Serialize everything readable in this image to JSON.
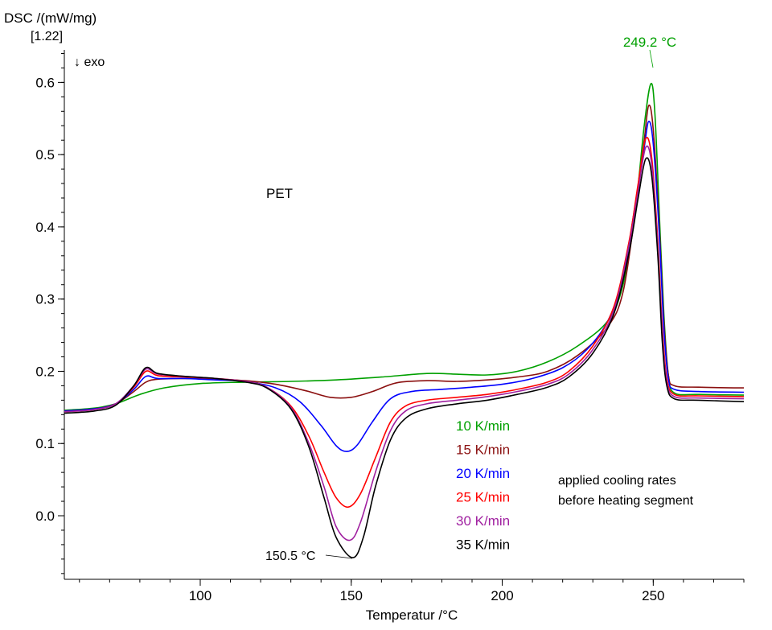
{
  "chart_data": {
    "type": "line",
    "ylabel": "DSC /(mW/mg)",
    "ylabel_sub": "[1.22]",
    "exo_label": "↓ exo",
    "xlabel": "Temperatur /°C",
    "xlim": [
      55,
      280
    ],
    "ylim": [
      -0.088,
      0.645
    ],
    "x_ticks": [
      "100",
      "150",
      "200",
      "250"
    ],
    "y_ticks": [
      "0.0",
      "0.1",
      "0.2",
      "0.3",
      "0.4",
      "0.5",
      "0.6"
    ],
    "sample_label": "PET",
    "annotation_peak": "249.2 °C",
    "annotation_min": "150.5 °C",
    "note_line1": "applied cooling rates",
    "note_line2": "before heating segment",
    "series": [
      {
        "name": "10 K/min",
        "color": "#00a000",
        "points": [
          [
            55,
            0.146
          ],
          [
            65,
            0.149
          ],
          [
            72,
            0.155
          ],
          [
            80,
            0.168
          ],
          [
            88,
            0.177
          ],
          [
            100,
            0.183
          ],
          [
            115,
            0.185
          ],
          [
            130,
            0.186
          ],
          [
            145,
            0.188
          ],
          [
            160,
            0.192
          ],
          [
            175,
            0.197
          ],
          [
            185,
            0.196
          ],
          [
            195,
            0.195
          ],
          [
            205,
            0.2
          ],
          [
            215,
            0.213
          ],
          [
            225,
            0.235
          ],
          [
            235,
            0.27
          ],
          [
            240,
            0.32
          ],
          [
            244,
            0.42
          ],
          [
            247,
            0.54
          ],
          [
            249.2,
            0.598
          ],
          [
            250.5,
            0.56
          ],
          [
            252,
            0.42
          ],
          [
            253.5,
            0.28
          ],
          [
            255,
            0.195
          ],
          [
            257,
            0.17
          ],
          [
            265,
            0.168
          ],
          [
            280,
            0.167
          ]
        ]
      },
      {
        "name": "15 K/min",
        "color": "#8b1010",
        "points": [
          [
            55,
            0.145
          ],
          [
            65,
            0.148
          ],
          [
            72,
            0.155
          ],
          [
            78,
            0.172
          ],
          [
            82,
            0.185
          ],
          [
            86,
            0.189
          ],
          [
            95,
            0.19
          ],
          [
            105,
            0.189
          ],
          [
            115,
            0.187
          ],
          [
            125,
            0.182
          ],
          [
            135,
            0.173
          ],
          [
            143,
            0.164
          ],
          [
            150,
            0.164
          ],
          [
            157,
            0.172
          ],
          [
            165,
            0.184
          ],
          [
            175,
            0.187
          ],
          [
            185,
            0.186
          ],
          [
            195,
            0.188
          ],
          [
            205,
            0.192
          ],
          [
            215,
            0.2
          ],
          [
            225,
            0.222
          ],
          [
            235,
            0.262
          ],
          [
            240,
            0.31
          ],
          [
            244,
            0.42
          ],
          [
            247,
            0.52
          ],
          [
            248.5,
            0.568
          ],
          [
            250,
            0.535
          ],
          [
            252,
            0.4
          ],
          [
            253.5,
            0.27
          ],
          [
            255,
            0.195
          ],
          [
            257,
            0.18
          ],
          [
            265,
            0.178
          ],
          [
            280,
            0.177
          ]
        ]
      },
      {
        "name": "20 K/min",
        "color": "#0000ff",
        "points": [
          [
            55,
            0.145
          ],
          [
            65,
            0.148
          ],
          [
            72,
            0.155
          ],
          [
            78,
            0.175
          ],
          [
            82,
            0.193
          ],
          [
            86,
            0.19
          ],
          [
            95,
            0.19
          ],
          [
            105,
            0.188
          ],
          [
            115,
            0.186
          ],
          [
            125,
            0.177
          ],
          [
            133,
            0.158
          ],
          [
            140,
            0.125
          ],
          [
            145,
            0.097
          ],
          [
            148.5,
            0.089
          ],
          [
            152,
            0.098
          ],
          [
            157,
            0.13
          ],
          [
            163,
            0.162
          ],
          [
            170,
            0.172
          ],
          [
            180,
            0.175
          ],
          [
            190,
            0.178
          ],
          [
            200,
            0.182
          ],
          [
            210,
            0.19
          ],
          [
            220,
            0.205
          ],
          [
            228,
            0.23
          ],
          [
            235,
            0.27
          ],
          [
            240,
            0.33
          ],
          [
            244,
            0.43
          ],
          [
            247,
            0.51
          ],
          [
            248.5,
            0.546
          ],
          [
            250,
            0.515
          ],
          [
            252,
            0.39
          ],
          [
            253.5,
            0.26
          ],
          [
            255,
            0.19
          ],
          [
            257,
            0.175
          ],
          [
            265,
            0.172
          ],
          [
            280,
            0.171
          ]
        ]
      },
      {
        "name": "25 K/min",
        "color": "#ff0000",
        "points": [
          [
            55,
            0.144
          ],
          [
            65,
            0.147
          ],
          [
            72,
            0.155
          ],
          [
            78,
            0.178
          ],
          [
            82,
            0.2
          ],
          [
            86,
            0.194
          ],
          [
            95,
            0.192
          ],
          [
            105,
            0.19
          ],
          [
            115,
            0.186
          ],
          [
            122,
            0.178
          ],
          [
            130,
            0.152
          ],
          [
            136,
            0.11
          ],
          [
            141,
            0.06
          ],
          [
            145,
            0.025
          ],
          [
            149,
            0.012
          ],
          [
            153,
            0.03
          ],
          [
            158,
            0.08
          ],
          [
            163,
            0.13
          ],
          [
            168,
            0.152
          ],
          [
            175,
            0.16
          ],
          [
            185,
            0.164
          ],
          [
            195,
            0.168
          ],
          [
            205,
            0.175
          ],
          [
            215,
            0.185
          ],
          [
            222,
            0.2
          ],
          [
            230,
            0.235
          ],
          [
            237,
            0.29
          ],
          [
            242,
            0.38
          ],
          [
            245,
            0.46
          ],
          [
            247.5,
            0.522
          ],
          [
            249.5,
            0.495
          ],
          [
            251.5,
            0.38
          ],
          [
            253,
            0.26
          ],
          [
            254.5,
            0.19
          ],
          [
            257,
            0.168
          ],
          [
            265,
            0.166
          ],
          [
            280,
            0.165
          ]
        ]
      },
      {
        "name": "30 K/min",
        "color": "#a020a0",
        "points": [
          [
            55,
            0.144
          ],
          [
            65,
            0.147
          ],
          [
            72,
            0.155
          ],
          [
            78,
            0.18
          ],
          [
            82,
            0.203
          ],
          [
            86,
            0.196
          ],
          [
            95,
            0.193
          ],
          [
            105,
            0.19
          ],
          [
            115,
            0.186
          ],
          [
            122,
            0.178
          ],
          [
            130,
            0.15
          ],
          [
            136,
            0.1
          ],
          [
            141,
            0.04
          ],
          [
            145,
            -0.015
          ],
          [
            149.5,
            -0.034
          ],
          [
            153,
            -0.01
          ],
          [
            158,
            0.06
          ],
          [
            163,
            0.118
          ],
          [
            168,
            0.145
          ],
          [
            175,
            0.155
          ],
          [
            185,
            0.16
          ],
          [
            195,
            0.165
          ],
          [
            205,
            0.172
          ],
          [
            215,
            0.182
          ],
          [
            222,
            0.196
          ],
          [
            230,
            0.23
          ],
          [
            237,
            0.285
          ],
          [
            242,
            0.375
          ],
          [
            245,
            0.45
          ],
          [
            247.5,
            0.51
          ],
          [
            249.5,
            0.485
          ],
          [
            251.5,
            0.37
          ],
          [
            253,
            0.25
          ],
          [
            254.5,
            0.185
          ],
          [
            257,
            0.165
          ],
          [
            265,
            0.163
          ],
          [
            280,
            0.162
          ]
        ]
      },
      {
        "name": "35 K/min",
        "color": "#000000",
        "points": [
          [
            55,
            0.142
          ],
          [
            65,
            0.145
          ],
          [
            72,
            0.153
          ],
          [
            78,
            0.18
          ],
          [
            82,
            0.205
          ],
          [
            86,
            0.197
          ],
          [
            95,
            0.193
          ],
          [
            105,
            0.19
          ],
          [
            115,
            0.185
          ],
          [
            122,
            0.177
          ],
          [
            130,
            0.148
          ],
          [
            136,
            0.095
          ],
          [
            141,
            0.025
          ],
          [
            145,
            -0.03
          ],
          [
            150.5,
            -0.058
          ],
          [
            154,
            -0.03
          ],
          [
            158,
            0.04
          ],
          [
            163,
            0.105
          ],
          [
            168,
            0.135
          ],
          [
            175,
            0.148
          ],
          [
            185,
            0.155
          ],
          [
            195,
            0.16
          ],
          [
            205,
            0.168
          ],
          [
            215,
            0.178
          ],
          [
            222,
            0.192
          ],
          [
            230,
            0.225
          ],
          [
            237,
            0.28
          ],
          [
            242,
            0.365
          ],
          [
            245,
            0.44
          ],
          [
            247.5,
            0.494
          ],
          [
            249.5,
            0.47
          ],
          [
            251.5,
            0.36
          ],
          [
            253,
            0.24
          ],
          [
            254.5,
            0.18
          ],
          [
            257,
            0.162
          ],
          [
            265,
            0.16
          ],
          [
            280,
            0.158
          ]
        ]
      }
    ]
  }
}
